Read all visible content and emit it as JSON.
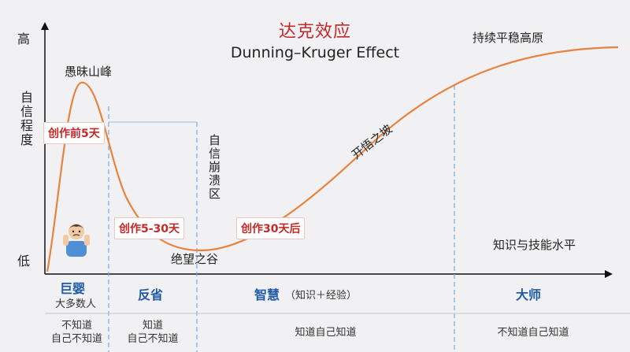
{
  "title_cn": "达克效应",
  "title_en": "Dunning–Kruger Effect",
  "y_axis": {
    "high": "高",
    "low": "低",
    "label": "自信程度"
  },
  "x_axis_label": "知识与技能水平",
  "curve_labels": {
    "peak": "愚昧山峰",
    "valley": "绝望之谷",
    "slope": "开悟之坡",
    "plateau": "持续平稳高原",
    "collapse": "自信崩溃区"
  },
  "tags": {
    "t1": "创作前5天",
    "t2": "创作5-30天",
    "t3": "创作30天后"
  },
  "stages": [
    {
      "name": "巨婴",
      "sub": "大多数人",
      "know": [
        "不知道",
        "自己不知道"
      ]
    },
    {
      "name": "反省",
      "sub": "",
      "know": [
        "知道",
        "自己不知道"
      ]
    },
    {
      "name": "智慧",
      "sub": "（知识＋经验）",
      "know": [
        "知道自己知道"
      ]
    },
    {
      "name": "大师",
      "sub": "",
      "know": [
        "不知道自己知道"
      ]
    }
  ],
  "colors": {
    "curve": "#e8823f",
    "dashed": "#7ea6d8",
    "title": "#c62828",
    "stage": "#1f5aa6"
  }
}
